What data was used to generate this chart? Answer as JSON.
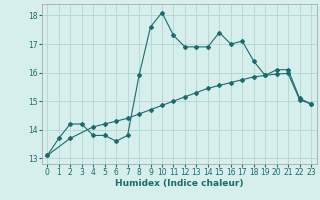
{
  "xlabel": "Humidex (Indice chaleur)",
  "bg_color": "#d6efed",
  "grid_color": "#b8d8d5",
  "line_color": "#1a6b6b",
  "text_color": "#1a6b6b",
  "xlim": [
    -0.5,
    23.5
  ],
  "ylim": [
    12.8,
    18.4
  ],
  "yticks": [
    13,
    14,
    15,
    16,
    17,
    18
  ],
  "xticks": [
    0,
    1,
    2,
    3,
    4,
    5,
    6,
    7,
    8,
    9,
    10,
    11,
    12,
    13,
    14,
    15,
    16,
    17,
    18,
    19,
    20,
    21,
    22,
    23
  ],
  "curve1_x": [
    0,
    1,
    2,
    3,
    4,
    5,
    6,
    7,
    8,
    9,
    10,
    11,
    12,
    13,
    14,
    15,
    16,
    17,
    18,
    19,
    20,
    21,
    22,
    23
  ],
  "curve1_y": [
    13.1,
    13.7,
    14.2,
    14.2,
    13.8,
    13.8,
    13.6,
    13.8,
    15.9,
    17.6,
    18.1,
    17.3,
    16.9,
    16.9,
    16.9,
    17.4,
    17.0,
    17.1,
    16.4,
    15.9,
    16.1,
    16.1,
    15.1,
    14.9
  ],
  "curve2_x": [
    0,
    2,
    4,
    5,
    6,
    7,
    8,
    9,
    10,
    11,
    12,
    13,
    14,
    15,
    16,
    17,
    18,
    19,
    20,
    21,
    22,
    23
  ],
  "curve2_y": [
    13.1,
    13.7,
    14.1,
    14.2,
    14.3,
    14.4,
    14.55,
    14.7,
    14.85,
    15.0,
    15.15,
    15.3,
    15.45,
    15.55,
    15.65,
    15.75,
    15.85,
    15.9,
    15.95,
    15.97,
    15.05,
    14.9
  ]
}
